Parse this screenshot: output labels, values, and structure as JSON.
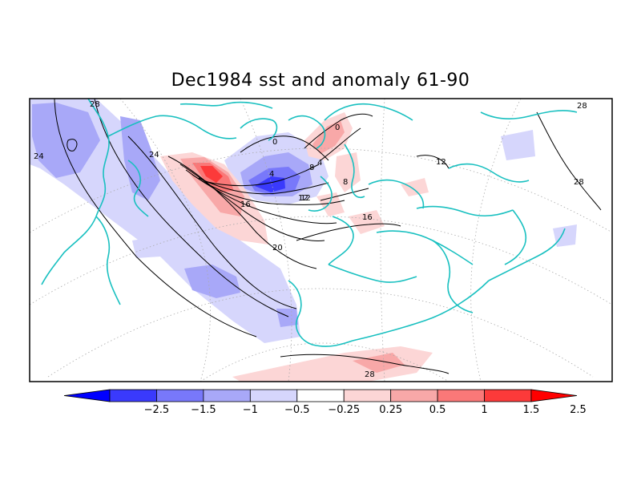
{
  "title": "Dec1984 sst and anomaly 61-90",
  "contour_labels": [
    "28",
    "24",
    "24",
    "20",
    "16",
    "12",
    "8",
    "4",
    "0",
    "0",
    "4",
    "8",
    "12",
    "16",
    "12",
    "28",
    "28",
    "8"
  ],
  "colorbar": {
    "ticks": [
      "-2.5",
      "-1.5",
      "-1",
      "-0.5",
      "-0.25",
      "0.25",
      "0.5",
      "1",
      "1.5",
      "2.5"
    ],
    "colors": [
      "#0000ff",
      "#3a3afc",
      "#7878fa",
      "#a8a8f8",
      "#d6d6fc",
      "#ffffff",
      "#fcd6d6",
      "#f8a8a8",
      "#fa7878",
      "#fc3a3a",
      "#ff0000"
    ]
  },
  "colors": {
    "coastline": "#19c0c0",
    "contour": "#000000",
    "gridline": "#aaaaaa"
  }
}
